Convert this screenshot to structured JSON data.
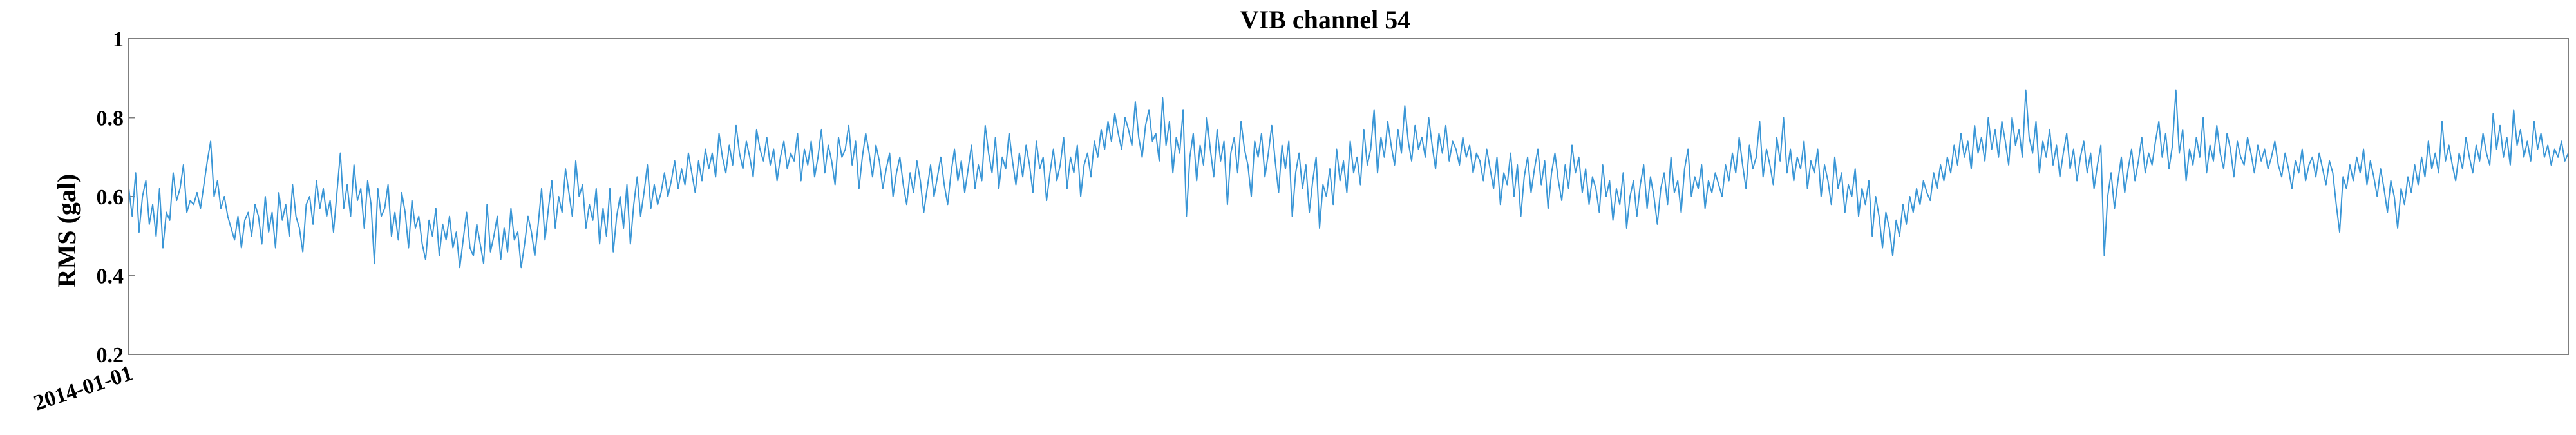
{
  "chart_data": {
    "type": "line",
    "title": "VIB channel 54",
    "xlabel": "",
    "ylabel": "RMS (gal)",
    "x_tick_labels": [
      "2014-01-01"
    ],
    "y_ticks": [
      0.2,
      0.4,
      0.6,
      0.8,
      1
    ],
    "y_tick_labels": [
      "0.2",
      "0.4",
      "0.6",
      "0.8",
      "1"
    ],
    "ylim": [
      0.2,
      1.0
    ],
    "grid": false,
    "line_color": "#3a96d6",
    "series": [
      {
        "values": [
          0.62,
          0.55,
          0.66,
          0.51,
          0.6,
          0.64,
          0.53,
          0.58,
          0.5,
          0.62,
          0.47,
          0.56,
          0.54,
          0.66,
          0.59,
          0.62,
          0.68,
          0.56,
          0.59,
          0.58,
          0.61,
          0.57,
          0.63,
          0.69,
          0.74,
          0.6,
          0.64,
          0.57,
          0.6,
          0.55,
          0.52,
          0.49,
          0.55,
          0.47,
          0.54,
          0.56,
          0.5,
          0.58,
          0.55,
          0.48,
          0.6,
          0.51,
          0.56,
          0.47,
          0.61,
          0.54,
          0.58,
          0.5,
          0.63,
          0.55,
          0.52,
          0.46,
          0.58,
          0.6,
          0.53,
          0.64,
          0.57,
          0.62,
          0.55,
          0.59,
          0.51,
          0.61,
          0.71,
          0.57,
          0.63,
          0.55,
          0.68,
          0.59,
          0.62,
          0.52,
          0.64,
          0.58,
          0.43,
          0.62,
          0.55,
          0.57,
          0.63,
          0.5,
          0.56,
          0.49,
          0.61,
          0.56,
          0.47,
          0.59,
          0.52,
          0.55,
          0.48,
          0.44,
          0.54,
          0.5,
          0.57,
          0.45,
          0.53,
          0.49,
          0.55,
          0.47,
          0.51,
          0.42,
          0.49,
          0.56,
          0.47,
          0.45,
          0.53,
          0.48,
          0.43,
          0.58,
          0.46,
          0.5,
          0.55,
          0.44,
          0.52,
          0.46,
          0.57,
          0.49,
          0.51,
          0.42,
          0.48,
          0.55,
          0.51,
          0.45,
          0.53,
          0.62,
          0.49,
          0.57,
          0.64,
          0.52,
          0.6,
          0.56,
          0.67,
          0.61,
          0.55,
          0.69,
          0.6,
          0.63,
          0.52,
          0.58,
          0.54,
          0.62,
          0.48,
          0.57,
          0.5,
          0.62,
          0.46,
          0.55,
          0.6,
          0.52,
          0.63,
          0.48,
          0.58,
          0.65,
          0.55,
          0.61,
          0.68,
          0.57,
          0.63,
          0.58,
          0.61,
          0.66,
          0.6,
          0.64,
          0.69,
          0.62,
          0.67,
          0.63,
          0.71,
          0.66,
          0.61,
          0.69,
          0.64,
          0.72,
          0.67,
          0.71,
          0.65,
          0.76,
          0.7,
          0.66,
          0.73,
          0.68,
          0.78,
          0.71,
          0.67,
          0.74,
          0.7,
          0.65,
          0.77,
          0.72,
          0.69,
          0.75,
          0.68,
          0.72,
          0.64,
          0.7,
          0.74,
          0.67,
          0.71,
          0.69,
          0.76,
          0.64,
          0.72,
          0.68,
          0.74,
          0.65,
          0.7,
          0.77,
          0.66,
          0.73,
          0.69,
          0.63,
          0.75,
          0.7,
          0.72,
          0.78,
          0.68,
          0.74,
          0.62,
          0.7,
          0.76,
          0.71,
          0.65,
          0.73,
          0.69,
          0.62,
          0.67,
          0.71,
          0.6,
          0.66,
          0.7,
          0.63,
          0.58,
          0.66,
          0.61,
          0.69,
          0.64,
          0.56,
          0.62,
          0.68,
          0.6,
          0.65,
          0.7,
          0.63,
          0.58,
          0.66,
          0.72,
          0.64,
          0.69,
          0.61,
          0.67,
          0.73,
          0.62,
          0.68,
          0.64,
          0.78,
          0.71,
          0.66,
          0.75,
          0.62,
          0.7,
          0.67,
          0.76,
          0.69,
          0.63,
          0.71,
          0.65,
          0.73,
          0.68,
          0.61,
          0.74,
          0.67,
          0.7,
          0.59,
          0.66,
          0.72,
          0.64,
          0.68,
          0.75,
          0.62,
          0.7,
          0.66,
          0.73,
          0.6,
          0.68,
          0.71,
          0.65,
          0.74,
          0.7,
          0.77,
          0.72,
          0.79,
          0.74,
          0.81,
          0.76,
          0.72,
          0.8,
          0.77,
          0.73,
          0.84,
          0.75,
          0.7,
          0.78,
          0.82,
          0.74,
          0.76,
          0.69,
          0.85,
          0.73,
          0.79,
          0.66,
          0.75,
          0.71,
          0.82,
          0.55,
          0.7,
          0.76,
          0.64,
          0.73,
          0.68,
          0.8,
          0.72,
          0.65,
          0.77,
          0.69,
          0.74,
          0.58,
          0.71,
          0.75,
          0.66,
          0.79,
          0.72,
          0.68,
          0.6,
          0.74,
          0.7,
          0.76,
          0.65,
          0.71,
          0.78,
          0.69,
          0.61,
          0.73,
          0.67,
          0.74,
          0.55,
          0.66,
          0.71,
          0.62,
          0.68,
          0.56,
          0.64,
          0.7,
          0.52,
          0.63,
          0.6,
          0.67,
          0.58,
          0.72,
          0.64,
          0.69,
          0.61,
          0.74,
          0.66,
          0.7,
          0.63,
          0.77,
          0.68,
          0.72,
          0.82,
          0.66,
          0.75,
          0.7,
          0.79,
          0.73,
          0.68,
          0.77,
          0.71,
          0.83,
          0.74,
          0.69,
          0.78,
          0.72,
          0.75,
          0.7,
          0.8,
          0.73,
          0.67,
          0.76,
          0.71,
          0.78,
          0.69,
          0.74,
          0.72,
          0.68,
          0.75,
          0.7,
          0.73,
          0.66,
          0.71,
          0.69,
          0.64,
          0.72,
          0.67,
          0.62,
          0.7,
          0.58,
          0.66,
          0.63,
          0.71,
          0.6,
          0.68,
          0.55,
          0.65,
          0.7,
          0.61,
          0.67,
          0.72,
          0.63,
          0.69,
          0.57,
          0.66,
          0.71,
          0.64,
          0.59,
          0.68,
          0.62,
          0.73,
          0.66,
          0.7,
          0.61,
          0.67,
          0.58,
          0.65,
          0.62,
          0.56,
          0.68,
          0.6,
          0.64,
          0.54,
          0.62,
          0.58,
          0.66,
          0.52,
          0.6,
          0.64,
          0.55,
          0.63,
          0.68,
          0.57,
          0.65,
          0.6,
          0.53,
          0.62,
          0.66,
          0.58,
          0.7,
          0.61,
          0.64,
          0.56,
          0.67,
          0.72,
          0.6,
          0.65,
          0.62,
          0.68,
          0.57,
          0.64,
          0.61,
          0.66,
          0.63,
          0.6,
          0.68,
          0.64,
          0.71,
          0.66,
          0.75,
          0.68,
          0.62,
          0.73,
          0.67,
          0.7,
          0.79,
          0.65,
          0.72,
          0.68,
          0.63,
          0.75,
          0.69,
          0.8,
          0.66,
          0.72,
          0.64,
          0.7,
          0.67,
          0.74,
          0.62,
          0.69,
          0.66,
          0.72,
          0.6,
          0.68,
          0.64,
          0.58,
          0.7,
          0.62,
          0.66,
          0.56,
          0.63,
          0.6,
          0.67,
          0.55,
          0.62,
          0.58,
          0.64,
          0.5,
          0.6,
          0.55,
          0.47,
          0.56,
          0.52,
          0.45,
          0.54,
          0.5,
          0.58,
          0.53,
          0.6,
          0.56,
          0.62,
          0.58,
          0.64,
          0.61,
          0.59,
          0.66,
          0.62,
          0.68,
          0.64,
          0.7,
          0.66,
          0.73,
          0.68,
          0.76,
          0.7,
          0.74,
          0.67,
          0.78,
          0.71,
          0.75,
          0.69,
          0.8,
          0.72,
          0.77,
          0.7,
          0.79,
          0.74,
          0.68,
          0.8,
          0.73,
          0.77,
          0.7,
          0.87,
          0.75,
          0.71,
          0.79,
          0.66,
          0.74,
          0.7,
          0.77,
          0.68,
          0.73,
          0.65,
          0.71,
          0.76,
          0.67,
          0.72,
          0.64,
          0.7,
          0.74,
          0.66,
          0.71,
          0.62,
          0.68,
          0.73,
          0.45,
          0.6,
          0.66,
          0.57,
          0.64,
          0.7,
          0.61,
          0.67,
          0.72,
          0.64,
          0.69,
          0.75,
          0.66,
          0.71,
          0.68,
          0.74,
          0.79,
          0.7,
          0.76,
          0.67,
          0.73,
          0.87,
          0.71,
          0.77,
          0.64,
          0.72,
          0.68,
          0.75,
          0.7,
          0.8,
          0.66,
          0.73,
          0.69,
          0.78,
          0.71,
          0.67,
          0.76,
          0.72,
          0.65,
          0.74,
          0.7,
          0.68,
          0.75,
          0.71,
          0.66,
          0.73,
          0.69,
          0.72,
          0.67,
          0.7,
          0.74,
          0.68,
          0.65,
          0.71,
          0.67,
          0.62,
          0.69,
          0.66,
          0.72,
          0.64,
          0.68,
          0.7,
          0.65,
          0.71,
          0.67,
          0.63,
          0.69,
          0.66,
          0.58,
          0.51,
          0.65,
          0.62,
          0.68,
          0.64,
          0.7,
          0.66,
          0.72,
          0.63,
          0.69,
          0.65,
          0.6,
          0.67,
          0.62,
          0.56,
          0.64,
          0.6,
          0.52,
          0.62,
          0.58,
          0.65,
          0.61,
          0.68,
          0.63,
          0.7,
          0.65,
          0.74,
          0.67,
          0.71,
          0.66,
          0.79,
          0.69,
          0.73,
          0.68,
          0.64,
          0.71,
          0.67,
          0.75,
          0.7,
          0.66,
          0.73,
          0.69,
          0.76,
          0.71,
          0.68,
          0.81,
          0.72,
          0.78,
          0.7,
          0.75,
          0.68,
          0.82,
          0.73,
          0.77,
          0.7,
          0.74,
          0.69,
          0.79,
          0.72,
          0.76,
          0.7,
          0.73,
          0.68,
          0.72,
          0.7,
          0.74,
          0.69,
          0.71
        ]
      }
    ]
  }
}
